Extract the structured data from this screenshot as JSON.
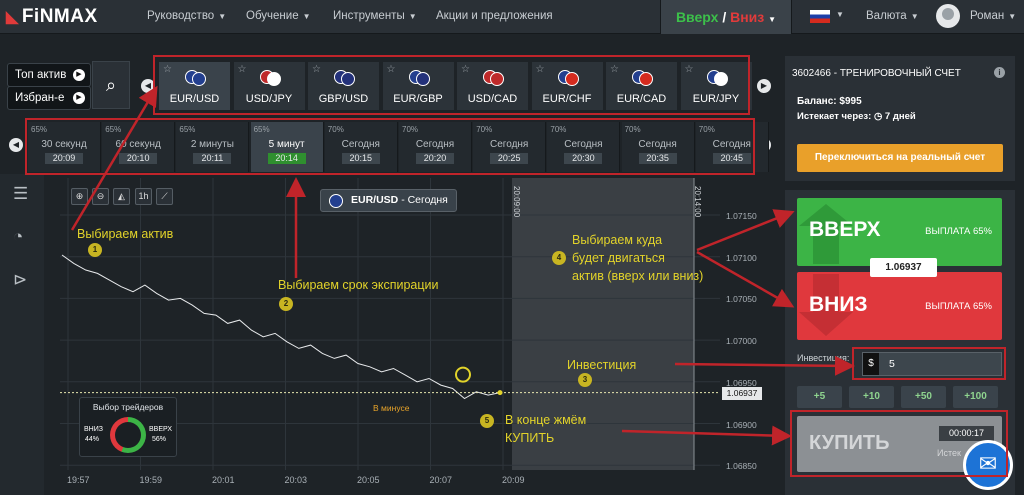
{
  "nav": {
    "logo": "FiNMAX",
    "items": [
      "Руководство",
      "Обучение",
      "Инструменты",
      "Акции и предложения"
    ],
    "toggle_up": "Вверх",
    "toggle_sep": "/",
    "toggle_down": "Вниз",
    "currency": "Валюта",
    "user": "Роман"
  },
  "filters": {
    "top": "Топ актив",
    "fav": "Избран-е"
  },
  "assets": [
    "EUR/USD",
    "USD/JPY",
    "GBP/USD",
    "EUR/GBP",
    "USD/CAD",
    "EUR/CHF",
    "EUR/CAD",
    "EUR/JPY"
  ],
  "expiries": [
    {
      "pct": "65%",
      "name": "30 секунд",
      "time": "20:09"
    },
    {
      "pct": "65%",
      "name": "60 секунд",
      "time": "20:10"
    },
    {
      "pct": "65%",
      "name": "2 минуты",
      "time": "20:11"
    },
    {
      "pct": "65%",
      "name": "5 минут",
      "time": "20:14"
    },
    {
      "pct": "70%",
      "name": "Сегодня",
      "time": "20:15"
    },
    {
      "pct": "70%",
      "name": "Сегодня",
      "time": "20:20"
    },
    {
      "pct": "70%",
      "name": "Сегодня",
      "time": "20:25"
    },
    {
      "pct": "70%",
      "name": "Сегодня",
      "time": "20:30"
    },
    {
      "pct": "70%",
      "name": "Сегодня",
      "time": "20:35"
    },
    {
      "pct": "70%",
      "name": "Сегодня",
      "time": "20:45"
    }
  ],
  "chart": {
    "pair_label": "EUR/USD",
    "pair_suffix": "- Сегодня",
    "timeframe": "1h",
    "y_ticks": [
      "1.07150",
      "1.07100",
      "1.07050",
      "1.07000",
      "1.06950",
      "1.06900",
      "1.06850"
    ],
    "x_ticks": [
      "19:57",
      "19:59",
      "20:01",
      "20:03",
      "20:05",
      "20:07",
      "20:09"
    ],
    "current_price": "1.06937",
    "vline1": "20:09:00",
    "vline2": "20:14:00",
    "in_minus": "В минусе",
    "traders_title": "Выбор трейдеров",
    "traders_down": "ВНИЗ",
    "traders_down_pct": "44%",
    "traders_up": "ВВЕРХ",
    "traders_up_pct": "56%"
  },
  "annotations": {
    "a1": "Выбираем актив",
    "n1": "1",
    "a2": "Выбираем срок экспирации",
    "n2": "2",
    "a3": "Инвестиция",
    "n3": "3",
    "a4_l1": "Выбираем куда",
    "a4_l2": "будет двигаться",
    "a4_l3": "актив (вверх или вниз)",
    "n4": "4",
    "a5_l1": "В конце жмём",
    "a5_l2": "КУПИТЬ",
    "n5": "5"
  },
  "account": {
    "id": "3602466 - ТРЕНИРОВОЧНЫЙ СЧЕТ",
    "balance_label": "Баланс:",
    "balance": "$995",
    "expires_label": "Истекает через:",
    "expires": "7 дней",
    "switch": "Переключиться на реальный счет"
  },
  "trade": {
    "up": "ВВЕРХ",
    "up_payout": "ВЫПЛАТА 65%",
    "down": "ВНИЗ",
    "down_payout": "ВЫПЛАТА 65%",
    "price": "1.06937",
    "invest_label": "Инвестиция:",
    "currency": "$",
    "invest_value": "5",
    "quick": [
      "+5",
      "+10",
      "+50",
      "+100"
    ],
    "buy": "КУПИТЬ",
    "timer": "00:00:17",
    "timer_label": "Истек"
  },
  "chart_series": [
    1.07102,
    1.07092,
    1.07084,
    1.0708,
    1.07072,
    1.07064,
    1.07058,
    1.07066,
    1.07056,
    1.07048,
    1.0705,
    1.07042,
    1.07032,
    1.0703,
    1.0702,
    1.07024,
    1.07012,
    1.07004,
    1.07008,
    1.06998,
    1.0699,
    1.06994,
    1.06984,
    1.06978,
    1.06982,
    1.06972,
    1.06968,
    1.06962,
    1.06966,
    1.06958,
    1.0695,
    1.06954,
    1.06946,
    1.06942,
    1.0693,
    1.06938,
    1.06934,
    1.06937
  ]
}
